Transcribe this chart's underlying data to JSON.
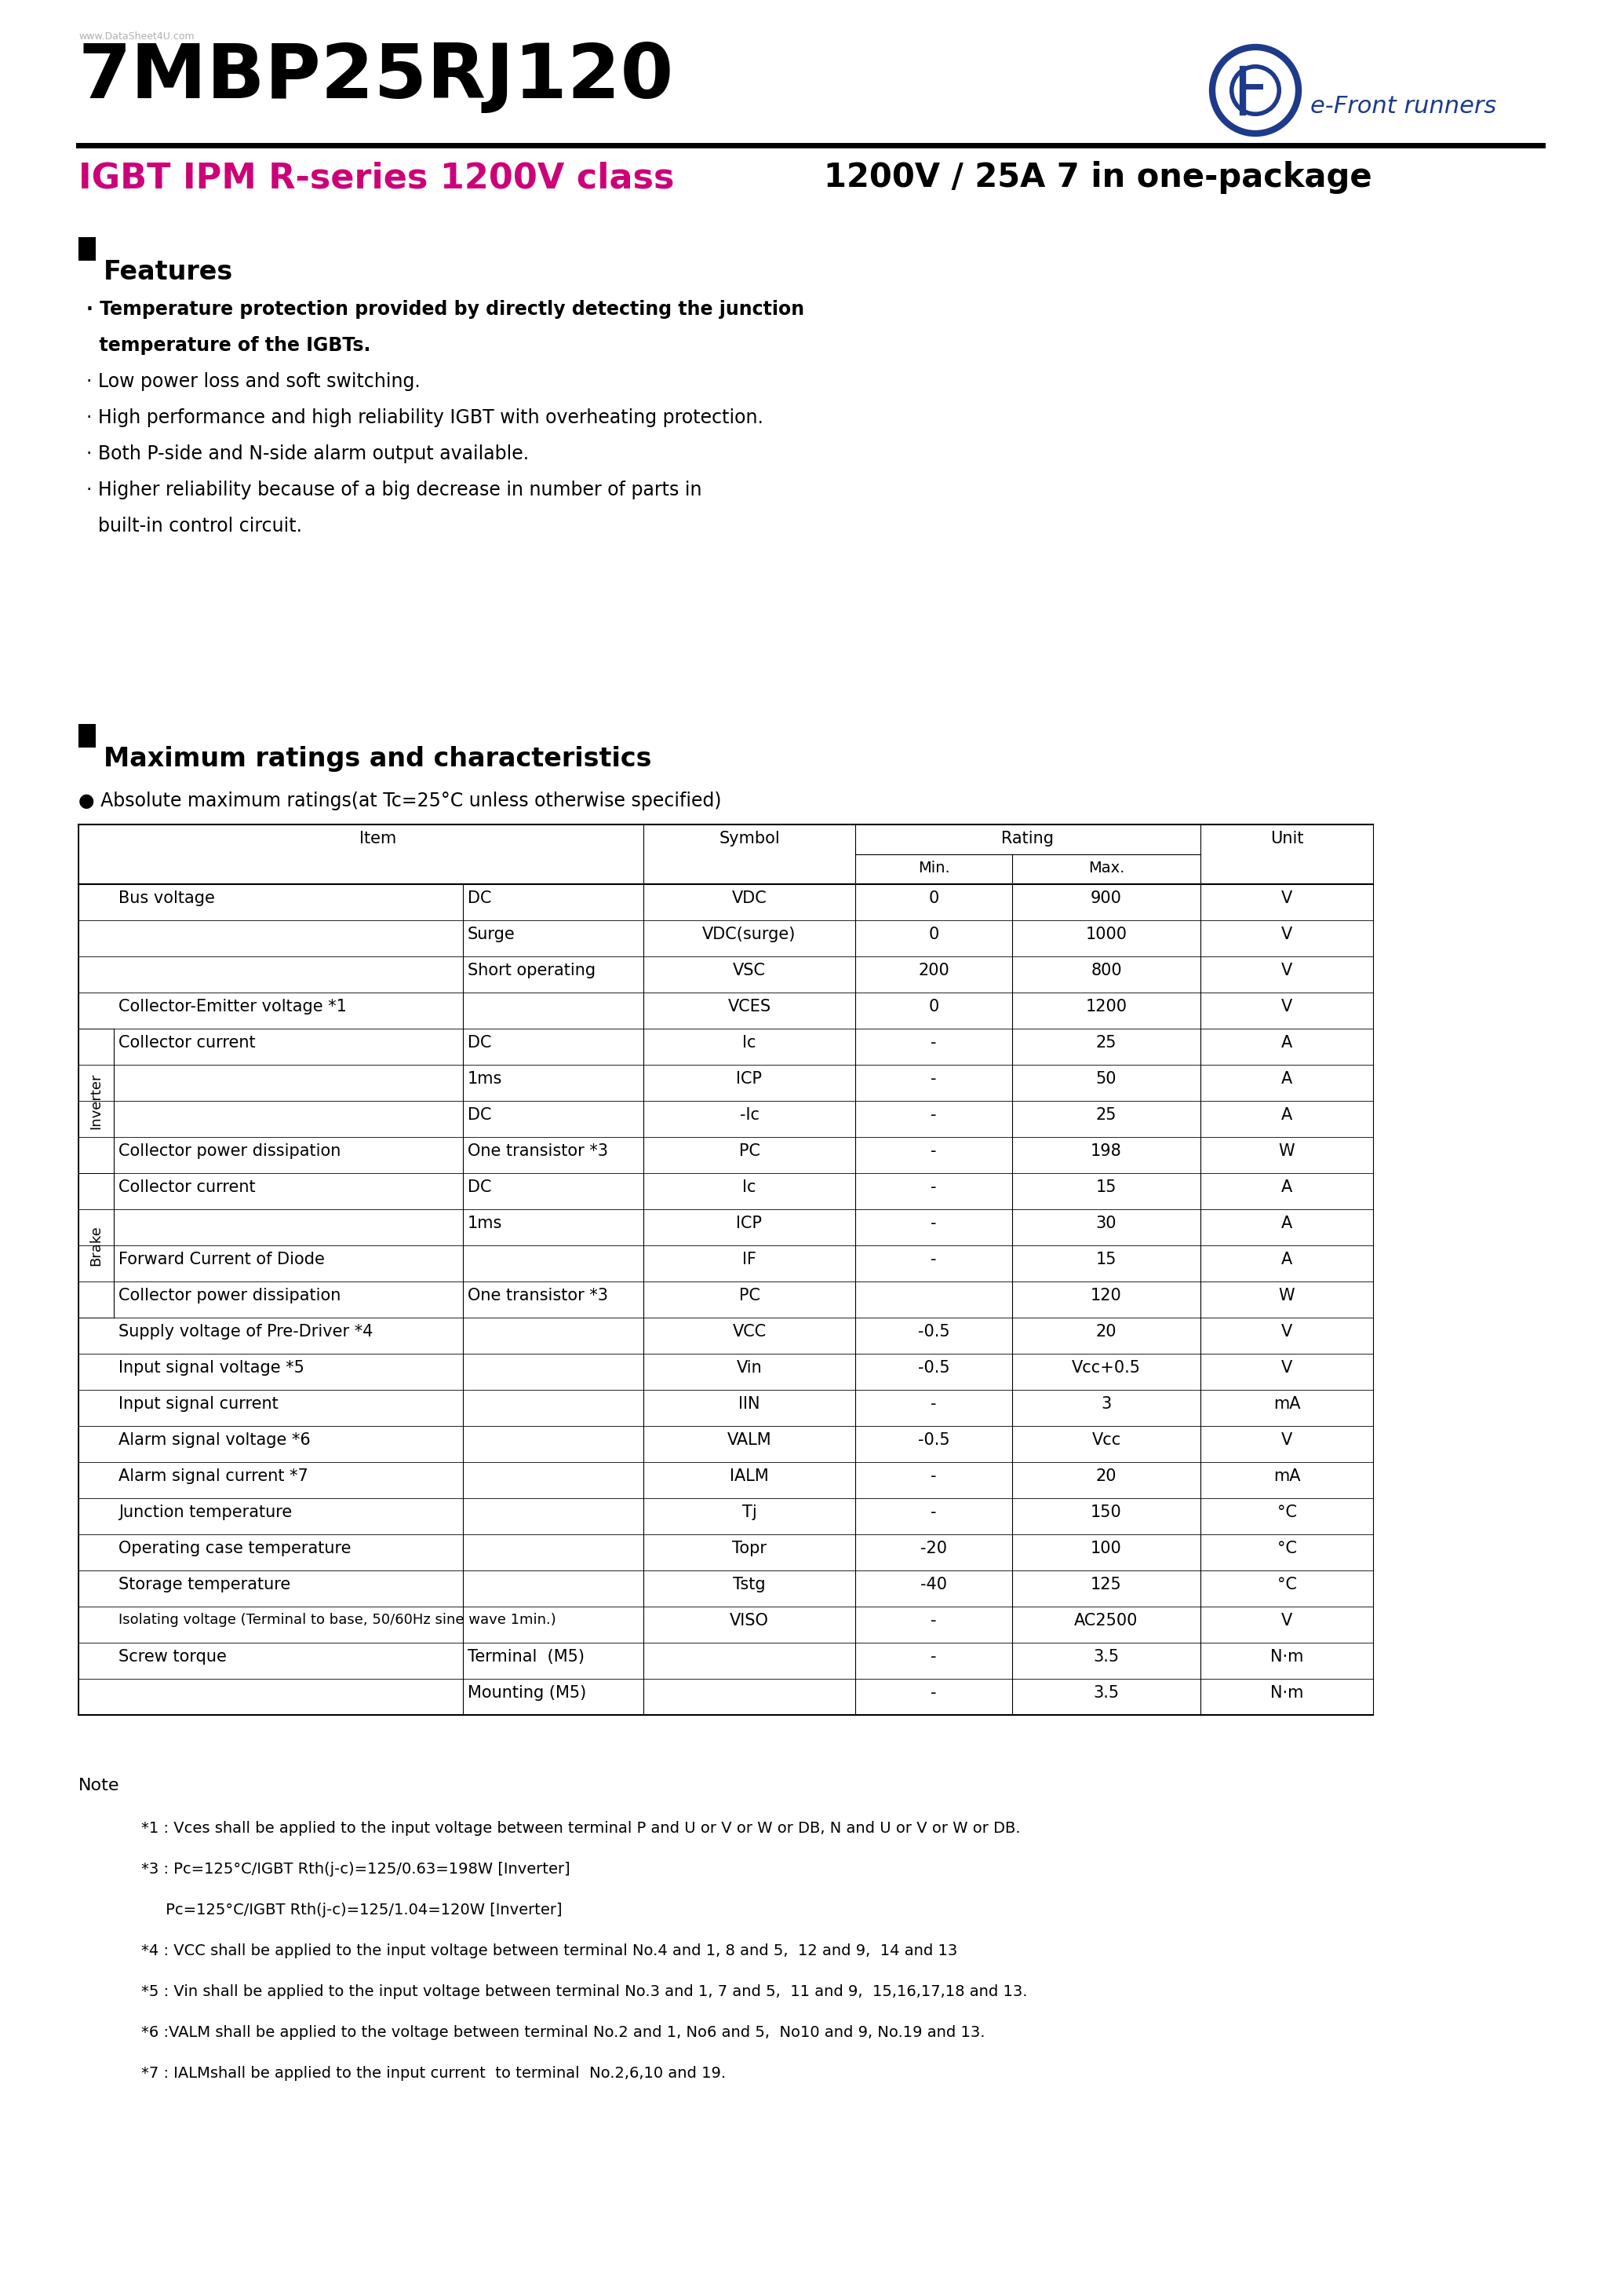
{
  "watermark": "www.DataSheet4U.com",
  "part_number": "7MBP25RJ120",
  "logo_text": "e-Front runners",
  "subtitle_left": "IGBT IPM R-series 1200V class",
  "subtitle_right": "1200V / 25A 7 in one-package",
  "features_title": "Features",
  "max_ratings_title": "Maximum ratings and characteristics",
  "abs_max_title": "Absolute maximum ratings(at Tc=25°C unless otherwise specified)",
  "table_data": [
    [
      "Bus voltage",
      "DC",
      "VDC",
      "0",
      "900",
      "V"
    ],
    [
      "",
      "Surge",
      "VDC(surge)",
      "0",
      "1000",
      "V"
    ],
    [
      "",
      "Short operating",
      "VSC",
      "200",
      "800",
      "V"
    ],
    [
      "Collector-Emitter voltage *1",
      "",
      "VCES",
      "0",
      "1200",
      "V"
    ],
    [
      "Collector current",
      "DC",
      "Ic",
      "-",
      "25",
      "A"
    ],
    [
      "",
      "1ms",
      "ICP",
      "-",
      "50",
      "A"
    ],
    [
      "",
      "DC",
      "-Ic",
      "-",
      "25",
      "A"
    ],
    [
      "Collector power dissipation",
      "One transistor *3",
      "PC",
      "-",
      "198",
      "W"
    ],
    [
      "Collector current",
      "DC",
      "Ic",
      "-",
      "15",
      "A"
    ],
    [
      "",
      "1ms",
      "ICP",
      "-",
      "30",
      "A"
    ],
    [
      "Forward Current of Diode",
      "",
      "IF",
      "-",
      "15",
      "A"
    ],
    [
      "Collector power dissipation",
      "One transistor *3",
      "PC",
      "",
      "120",
      "W"
    ],
    [
      "Supply voltage of Pre-Driver *4",
      "",
      "VCC",
      "-0.5",
      "20",
      "V"
    ],
    [
      "Input signal voltage *5",
      "",
      "Vin",
      "-0.5",
      "Vcc+0.5",
      "V"
    ],
    [
      "Input signal current",
      "",
      "IIN",
      "-",
      "3",
      "mA"
    ],
    [
      "Alarm signal voltage *6",
      "",
      "VALM",
      "-0.5",
      "Vcc",
      "V"
    ],
    [
      "Alarm signal current *7",
      "",
      "IALM",
      "-",
      "20",
      "mA"
    ],
    [
      "Junction temperature",
      "",
      "Tj",
      "-",
      "150",
      "°C"
    ],
    [
      "Operating case temperature",
      "",
      "Topr",
      "-20",
      "100",
      "°C"
    ],
    [
      "Storage temperature",
      "",
      "Tstg",
      "-40",
      "125",
      "°C"
    ],
    [
      "Isolating voltage (Terminal to base, 50/60Hz sine wave 1min.)",
      "",
      "VISO",
      "-",
      "AC2500",
      "V"
    ],
    [
      "Screw torque",
      "Terminal  (M5)",
      "",
      "-",
      "3.5",
      "N·m"
    ],
    [
      "",
      "Mounting (M5)",
      "",
      "-",
      "3.5",
      "N·m"
    ]
  ],
  "notes": [
    "*1 : Vces shall be applied to the input voltage between terminal P and U or V or W or DB, N and U or V or W or DB.",
    "*3 : Pc=125°C/IGBT Rth(j-c)=125/0.63=198W [Inverter]",
    "     Pc=125°C/IGBT Rth(j-c)=125/1.04=120W [Inverter]",
    "*4 : VCC shall be applied to the input voltage between terminal No.4 and 1, 8 and 5,  12 and 9,  14 and 13",
    "*5 : Vin shall be applied to the input voltage between terminal No.3 and 1, 7 and 5,  11 and 9,  15,16,17,18 and 13.",
    "*6 :VALM shall be applied to the voltage between terminal No.2 and 1, No6 and 5,  No10 and 9, No.19 and 13.",
    "*7 : IALMshall be applied to the input current  to terminal  No.2,6,10 and 19."
  ]
}
